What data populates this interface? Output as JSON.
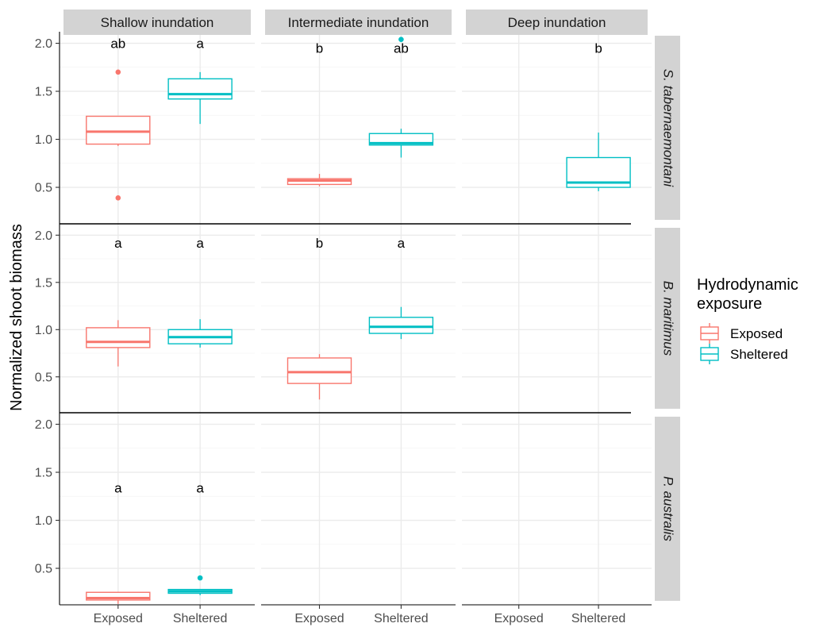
{
  "chart_data": {
    "type": "box",
    "ylabel": "Normalized shoot biomass",
    "xlabel": "",
    "ylim": [
      0.12,
      2.12
    ],
    "yticks": [
      0.5,
      1.0,
      1.5,
      2.0
    ],
    "ytick_labels": [
      "0.5",
      "1.0",
      "1.5",
      "2.0"
    ],
    "x_categories": [
      "Exposed",
      "Sheltered"
    ],
    "col_facets": [
      "Shallow inundation",
      "Intermediate inundation",
      "Deep inundation"
    ],
    "row_facets": [
      "S. tabernaemontani",
      "B. maritimus",
      "P. australis"
    ],
    "grid": true,
    "legend": {
      "title_lines": [
        "Hydrodynamic",
        "exposure"
      ],
      "position": "right",
      "entries": [
        {
          "label": "Exposed",
          "color": "#F8766D"
        },
        {
          "label": "Sheltered",
          "color": "#00BFC4"
        }
      ]
    },
    "boxes": [
      {
        "row": 0,
        "col": 0,
        "group": "Exposed",
        "whisker_low": 0.93,
        "q1": 0.95,
        "median": 1.08,
        "q3": 1.24,
        "whisker_high": 1.24,
        "outliers": [
          1.7,
          0.39
        ],
        "letter": "ab"
      },
      {
        "row": 0,
        "col": 0,
        "group": "Sheltered",
        "whisker_low": 1.16,
        "q1": 1.42,
        "median": 1.47,
        "q3": 1.63,
        "whisker_high": 1.7,
        "outliers": [],
        "letter": "a"
      },
      {
        "row": 0,
        "col": 1,
        "group": "Exposed",
        "whisker_low": 0.51,
        "q1": 0.53,
        "median": 0.57,
        "q3": 0.59,
        "whisker_high": 0.64,
        "outliers": [],
        "letter": "b"
      },
      {
        "row": 0,
        "col": 1,
        "group": "Sheltered",
        "whisker_low": 0.81,
        "q1": 0.94,
        "median": 0.96,
        "q3": 1.06,
        "whisker_high": 1.11,
        "outliers": [
          2.04
        ],
        "letter": "ab"
      },
      {
        "row": 0,
        "col": 2,
        "group": "Sheltered",
        "whisker_low": 0.46,
        "q1": 0.5,
        "median": 0.55,
        "q3": 0.81,
        "whisker_high": 1.07,
        "outliers": [],
        "letter": "b"
      },
      {
        "row": 1,
        "col": 0,
        "group": "Exposed",
        "whisker_low": 0.61,
        "q1": 0.81,
        "median": 0.87,
        "q3": 1.02,
        "whisker_high": 1.1,
        "outliers": [],
        "letter": "a"
      },
      {
        "row": 1,
        "col": 0,
        "group": "Sheltered",
        "whisker_low": 0.81,
        "q1": 0.85,
        "median": 0.92,
        "q3": 1.0,
        "whisker_high": 1.11,
        "outliers": [],
        "letter": "a"
      },
      {
        "row": 1,
        "col": 1,
        "group": "Exposed",
        "whisker_low": 0.26,
        "q1": 0.43,
        "median": 0.55,
        "q3": 0.7,
        "whisker_high": 0.74,
        "outliers": [],
        "letter": "b"
      },
      {
        "row": 1,
        "col": 1,
        "group": "Sheltered",
        "whisker_low": 0.9,
        "q1": 0.96,
        "median": 1.03,
        "q3": 1.13,
        "whisker_high": 1.24,
        "outliers": [],
        "letter": "a"
      },
      {
        "row": 2,
        "col": 0,
        "group": "Exposed",
        "whisker_low": 0.13,
        "q1": 0.17,
        "median": 0.19,
        "q3": 0.25,
        "whisker_high": 0.25,
        "outliers": [],
        "letter": "a"
      },
      {
        "row": 2,
        "col": 0,
        "group": "Sheltered",
        "whisker_low": 0.22,
        "q1": 0.24,
        "median": 0.26,
        "q3": 0.28,
        "whisker_high": 0.28,
        "outliers": [
          0.4
        ],
        "letter": "a"
      }
    ],
    "letter_positions": [
      {
        "row": 0,
        "col": 0,
        "group": "Exposed",
        "y": 2.0
      },
      {
        "row": 0,
        "col": 0,
        "group": "Sheltered",
        "y": 2.0
      },
      {
        "row": 0,
        "col": 1,
        "group": "Exposed",
        "y": 1.95
      },
      {
        "row": 0,
        "col": 1,
        "group": "Sheltered",
        "y": 1.95
      },
      {
        "row": 0,
        "col": 2,
        "group": "Sheltered",
        "y": 1.95
      },
      {
        "row": 1,
        "col": 0,
        "group": "Exposed",
        "y": 1.92
      },
      {
        "row": 1,
        "col": 0,
        "group": "Sheltered",
        "y": 1.92
      },
      {
        "row": 1,
        "col": 1,
        "group": "Exposed",
        "y": 1.92
      },
      {
        "row": 1,
        "col": 1,
        "group": "Sheltered",
        "y": 1.92
      },
      {
        "row": 2,
        "col": 0,
        "group": "Exposed",
        "y": 1.34
      },
      {
        "row": 2,
        "col": 0,
        "group": "Sheltered",
        "y": 1.34
      }
    ]
  }
}
